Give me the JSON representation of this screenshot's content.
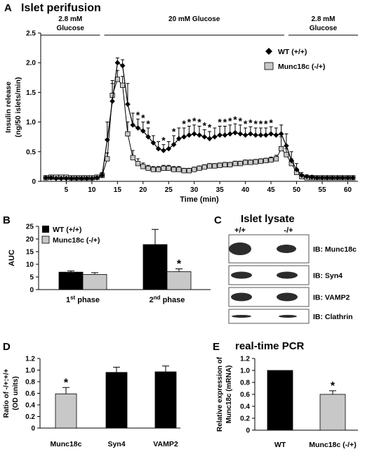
{
  "figure": {
    "panel_A_letter": "A",
    "panel_A_title": "Islet perifusion",
    "glucose_segments": [
      {
        "line1": "2.8 mM",
        "line2": "Glucose"
      },
      {
        "line1": "20 mM Glucose",
        "line2": ""
      },
      {
        "line1": "2.8 mM",
        "line2": "Glucose"
      }
    ],
    "panel_B_letter": "B",
    "panel_C_letter": "C",
    "panel_C_title": "Islet lysate",
    "panel_C_lanes": [
      "+/+",
      "-/+"
    ],
    "panel_C_blots": [
      "IB: Munc18c",
      "IB: Syn4",
      "IB: VAMP2",
      "IB: Clathrin"
    ],
    "panel_D_letter": "D",
    "panel_E_letter": "E",
    "panel_E_title": "real-time PCR",
    "colors": {
      "wt": "#000000",
      "ko": "#c8c8c8",
      "band": "#1a1a1a"
    }
  },
  "chart_data": [
    {
      "type": "line",
      "xlabel": "Time (min)",
      "ylabel_line1": "Insulin release",
      "ylabel_line2": "(ng/50 islets/min)",
      "xlim": [
        0,
        62
      ],
      "ylim": [
        0,
        2.5
      ],
      "xticks": [
        5,
        10,
        15,
        20,
        25,
        30,
        35,
        40,
        45,
        50,
        55,
        60
      ],
      "yticks": [
        "0",
        "0.5",
        "1.0",
        "1.5",
        "2.0",
        "2.5"
      ],
      "glucose_periods_min": [
        [
          0,
          12
        ],
        [
          12,
          48
        ],
        [
          48,
          62
        ]
      ],
      "legend": [
        "WT (+/+)",
        "Munc18c (-/+)"
      ],
      "series": [
        {
          "name": "WT (+/+)",
          "x": [
            1,
            2,
            3,
            4,
            5,
            6,
            7,
            8,
            9,
            10,
            11,
            12,
            13,
            14,
            15,
            16,
            17,
            18,
            19,
            20,
            21,
            22,
            23,
            24,
            25,
            26,
            27,
            28,
            29,
            30,
            31,
            32,
            33,
            34,
            35,
            36,
            37,
            38,
            39,
            40,
            41,
            42,
            43,
            44,
            45,
            46,
            47,
            48,
            49,
            50,
            51,
            52,
            53,
            54,
            55,
            56,
            57,
            58,
            59,
            60,
            61
          ],
          "y": [
            0.06,
            0.06,
            0.05,
            0.05,
            0.05,
            0.05,
            0.05,
            0.05,
            0.05,
            0.05,
            0.06,
            0.1,
            0.7,
            1.35,
            2.0,
            1.95,
            1.3,
            0.95,
            0.9,
            0.85,
            0.75,
            0.65,
            0.55,
            0.52,
            0.55,
            0.62,
            0.72,
            0.75,
            0.78,
            0.8,
            0.78,
            0.75,
            0.72,
            0.75,
            0.78,
            0.78,
            0.8,
            0.82,
            0.8,
            0.78,
            0.8,
            0.78,
            0.78,
            0.78,
            0.8,
            0.78,
            0.8,
            0.6,
            0.35,
            0.2,
            0.1,
            0.08,
            0.07,
            0.06,
            0.06,
            0.06,
            0.06,
            0.06,
            0.06,
            0.06,
            0.06
          ],
          "err": [
            0.03,
            0.03,
            0.03,
            0.03,
            0.03,
            0.03,
            0.03,
            0.03,
            0.03,
            0.03,
            0.03,
            0.05,
            0.3,
            0.35,
            0.08,
            0.1,
            0.35,
            0.2,
            0.15,
            0.15,
            0.15,
            0.12,
            0.12,
            0.1,
            0.12,
            0.15,
            0.18,
            0.15,
            0.15,
            0.15,
            0.15,
            0.12,
            0.12,
            0.15,
            0.15,
            0.15,
            0.15,
            0.15,
            0.15,
            0.12,
            0.12,
            0.12,
            0.12,
            0.12,
            0.12,
            0.12,
            0.15,
            0.2,
            0.15,
            0.1,
            0.05,
            0.03,
            0.03,
            0.03,
            0.03,
            0.03,
            0.03,
            0.03,
            0.03,
            0.03,
            0.03
          ],
          "significant_x": [
            19,
            20,
            21,
            24,
            26,
            28,
            29,
            30,
            31,
            32,
            33,
            35,
            36,
            37,
            38,
            39,
            40,
            41,
            42,
            43,
            44,
            45
          ]
        },
        {
          "name": "Munc18c (-/+)",
          "x": [
            1,
            2,
            3,
            4,
            5,
            6,
            7,
            8,
            9,
            10,
            11,
            12,
            13,
            14,
            15,
            16,
            17,
            18,
            19,
            20,
            21,
            22,
            23,
            24,
            25,
            26,
            27,
            28,
            29,
            30,
            31,
            32,
            33,
            34,
            35,
            36,
            37,
            38,
            39,
            40,
            41,
            42,
            43,
            44,
            45,
            46,
            47,
            48,
            49,
            50,
            51,
            52,
            53,
            54,
            55,
            56,
            57,
            58,
            59,
            60,
            61
          ],
          "y": [
            0.06,
            0.07,
            0.07,
            0.07,
            0.07,
            0.06,
            0.06,
            0.06,
            0.06,
            0.06,
            0.07,
            0.1,
            0.38,
            1.45,
            1.72,
            1.62,
            0.8,
            0.4,
            0.3,
            0.25,
            0.22,
            0.2,
            0.2,
            0.22,
            0.22,
            0.2,
            0.2,
            0.18,
            0.18,
            0.2,
            0.22,
            0.24,
            0.26,
            0.26,
            0.27,
            0.28,
            0.28,
            0.3,
            0.3,
            0.32,
            0.32,
            0.33,
            0.34,
            0.35,
            0.36,
            0.38,
            0.55,
            0.45,
            0.3,
            0.15,
            0.08,
            0.06,
            0.06,
            0.06,
            0.06,
            0.06,
            0.06,
            0.06,
            0.06,
            0.06,
            0.06
          ],
          "err": [
            0.02,
            0.02,
            0.02,
            0.02,
            0.02,
            0.02,
            0.02,
            0.02,
            0.02,
            0.02,
            0.02,
            0.03,
            0.1,
            0.2,
            0.15,
            0.15,
            0.2,
            0.12,
            0.08,
            0.06,
            0.05,
            0.05,
            0.05,
            0.05,
            0.05,
            0.05,
            0.05,
            0.04,
            0.04,
            0.04,
            0.04,
            0.04,
            0.04,
            0.04,
            0.04,
            0.04,
            0.04,
            0.04,
            0.04,
            0.04,
            0.04,
            0.04,
            0.04,
            0.04,
            0.05,
            0.06,
            0.2,
            0.1,
            0.08,
            0.05,
            0.02,
            0.02,
            0.02,
            0.02,
            0.02,
            0.02,
            0.02,
            0.02,
            0.02,
            0.02,
            0.02
          ]
        }
      ]
    },
    {
      "type": "bar",
      "ylabel": "AUC",
      "ylim": [
        0,
        25
      ],
      "yticks": [
        "0",
        "5",
        "10",
        "15",
        "20",
        "25"
      ],
      "categories": [
        "1st phase",
        "2nd phase"
      ],
      "category_base": [
        "1",
        "2"
      ],
      "category_sup": [
        "st",
        "nd"
      ],
      "category_tail": [
        " phase",
        " phase"
      ],
      "legend": [
        "WT (+/+)",
        "Munc18c (-/+)"
      ],
      "series": [
        {
          "name": "WT (+/+)",
          "values": [
            6.9,
            17.8
          ],
          "err": [
            0.5,
            6.0
          ]
        },
        {
          "name": "Munc18c (-/+)",
          "values": [
            6.0,
            7.1
          ],
          "err": [
            0.7,
            1.1
          ],
          "significant": [
            false,
            true
          ]
        }
      ]
    },
    {
      "type": "bar",
      "ylabel_line1": "Ratio of -/+:+/+",
      "ylabel_line2": "(OD units)",
      "ylim": [
        0,
        1.2
      ],
      "yticks": [
        "0",
        "0.2",
        "0.4",
        "0.6",
        "0.8",
        "1.0",
        "1.2"
      ],
      "categories": [
        "Munc18c",
        "Syn4",
        "VAMP2"
      ],
      "values": [
        0.59,
        0.96,
        0.97
      ],
      "err": [
        0.11,
        0.09,
        0.1
      ],
      "significant": [
        true,
        false,
        false
      ]
    },
    {
      "type": "bar",
      "ylabel_line1": "Relative expression of",
      "ylabel_line2": "Munc18c (mRNA)",
      "ylim": [
        0,
        1.2
      ],
      "yticks": [
        "0",
        "0.2",
        "0.4",
        "0.6",
        "0.8",
        "1.0",
        "1.2"
      ],
      "categories": [
        "WT",
        "Munc18c (-/+)"
      ],
      "values": [
        1.0,
        0.6
      ],
      "err": [
        0.0,
        0.06
      ],
      "significant": [
        false,
        true
      ]
    }
  ]
}
